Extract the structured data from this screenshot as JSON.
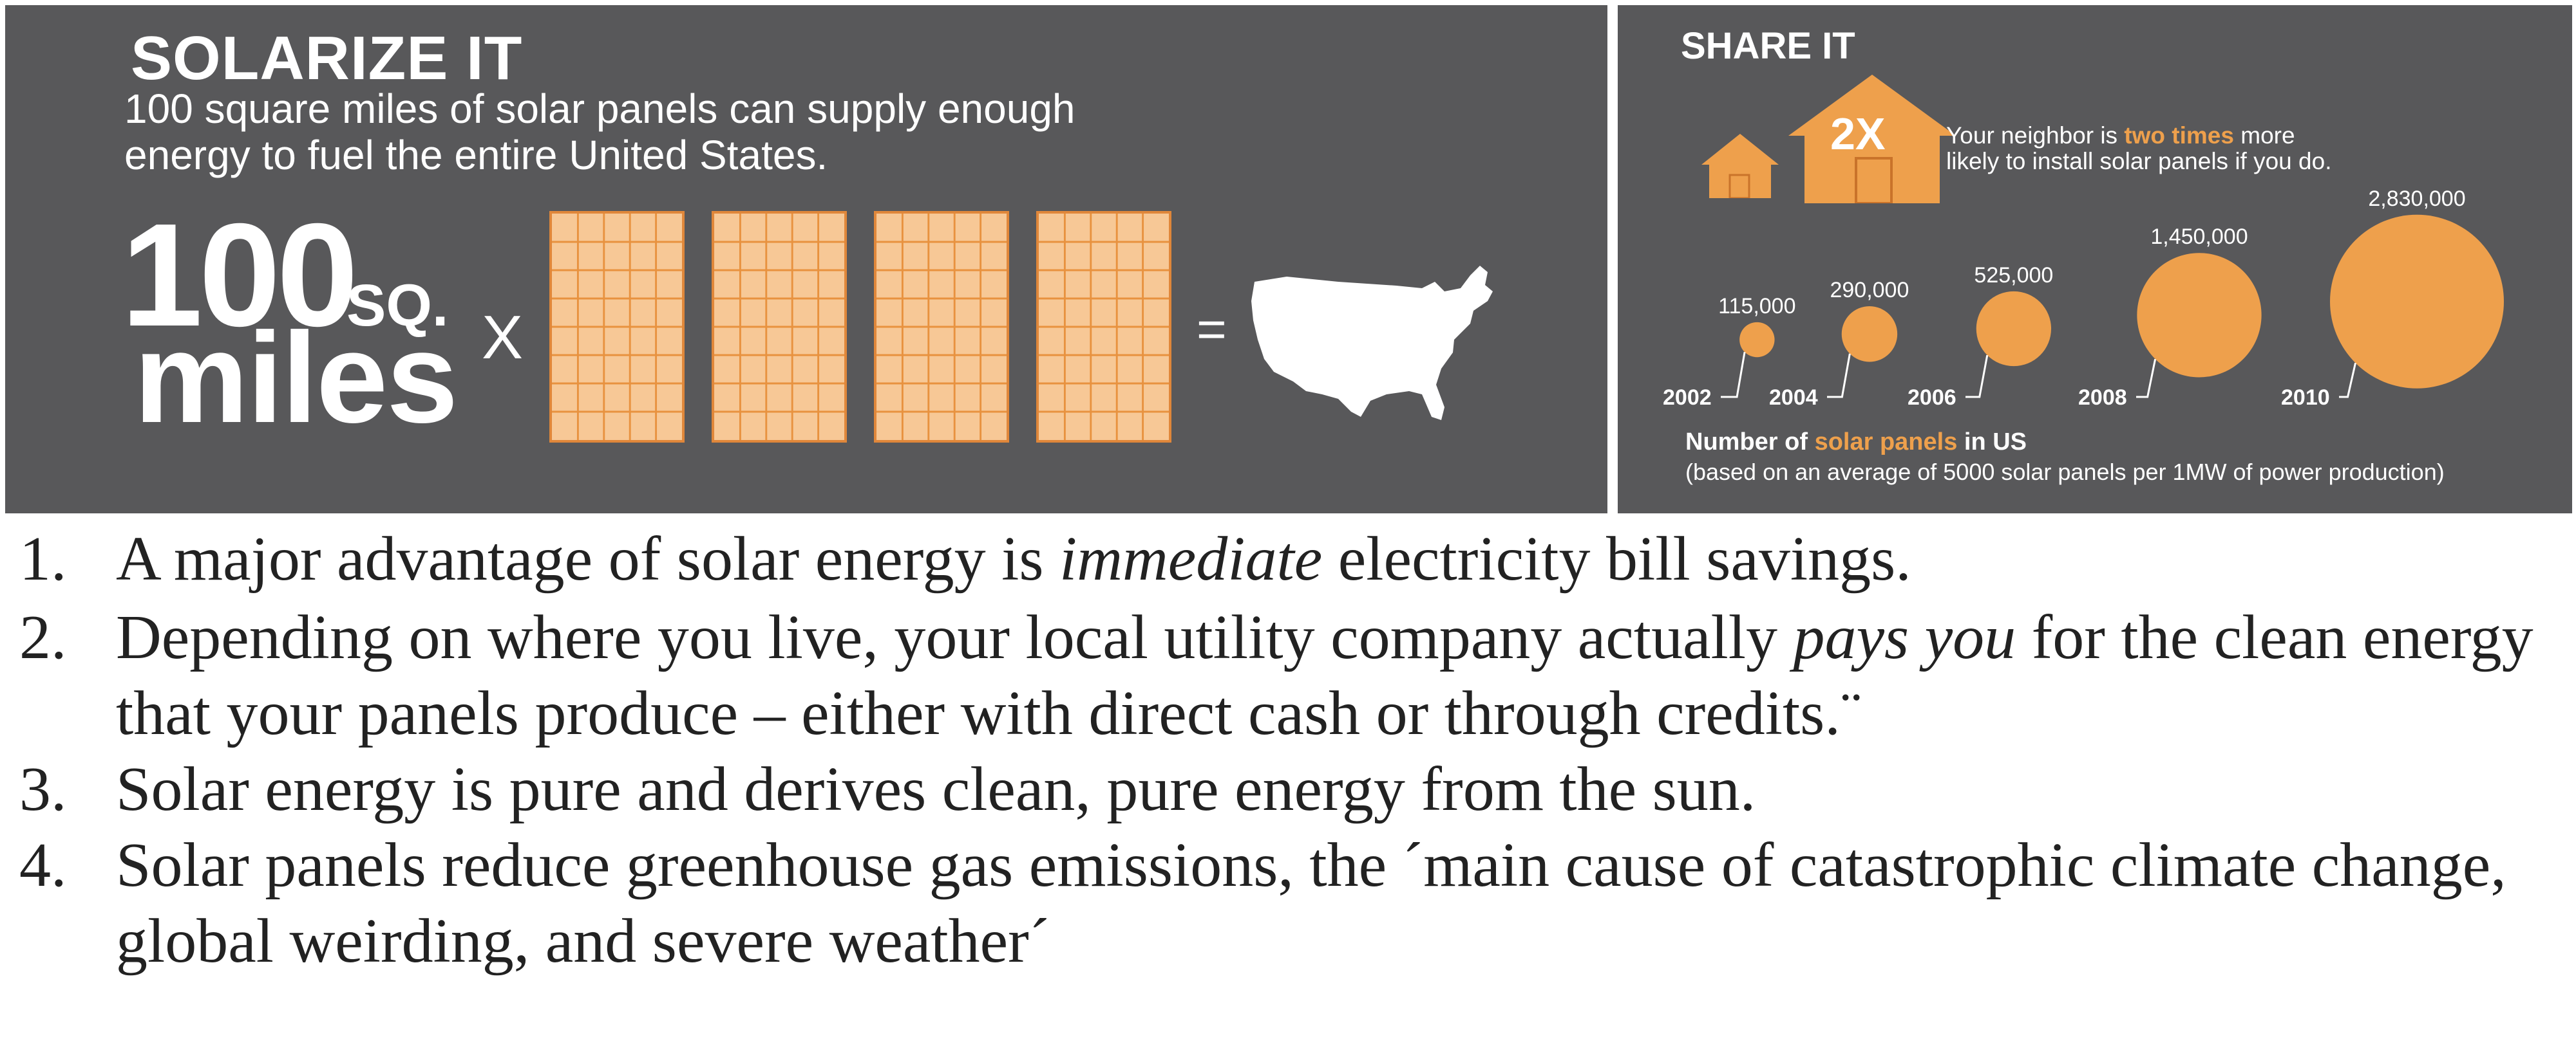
{
  "solarize": {
    "title": "SOLARIZE IT",
    "subtitle": "100 square miles of solar panels can supply enough energy to fuel the entire United States.",
    "big_number": "100",
    "big_unit_top": "SQ.",
    "big_unit": "miles",
    "times": "X",
    "equals": "="
  },
  "share": {
    "title": "SHARE IT",
    "house_label": "2X",
    "neighbor_pre": "Your neighbor is ",
    "neighbor_highlight": "two times",
    "neighbor_post": " more likely to install solar panels if you do.",
    "chart_title_pre": "Number of ",
    "chart_title_highlight": "solar panels",
    "chart_title_post": " in US",
    "chart_subtitle": "(based on an average of 5000 solar panels per 1MW of power production)"
  },
  "chart_data": {
    "type": "bubble",
    "x": [
      "2002",
      "2004",
      "2006",
      "2008",
      "2010"
    ],
    "values": [
      115000,
      290000,
      525000,
      1450000,
      2830000
    ],
    "labels": [
      "115,000",
      "290,000",
      "525,000",
      "1,450,000",
      "2,830,000"
    ],
    "title": "Number of solar panels in US",
    "colors": {
      "bubble": "#eea04c",
      "text": "#ffffff"
    }
  },
  "benefits": [
    {
      "num": "1.",
      "parts": [
        "A major advantage of solar energy is ",
        "immediate",
        " electricity bill savings."
      ]
    },
    {
      "num": "2.",
      "parts": [
        " Depending on where you live, your local utility company actually ",
        "pays you",
        " for the clean energy that your panels produce – either with direct cash or through credits.¨"
      ]
    },
    {
      "num": "3.",
      "parts": [
        "Solar energy is pure  and derives clean, pure energy from the sun."
      ]
    },
    {
      "num": "4.",
      "parts": [
        "Solar panels reduce  greenhouse gas emissions, the ´main cause of catastrophic climate change, global weirding, and severe weather´"
      ]
    }
  ],
  "colors": {
    "panel_bg": "#58585a",
    "accent": "#eea04c",
    "panel_fill": "#f7c896"
  }
}
